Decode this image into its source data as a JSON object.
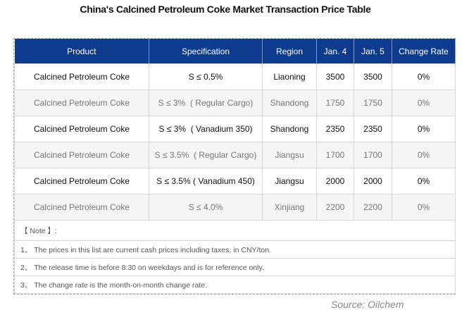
{
  "title": "China's Calcined Petroleum Coke Market Transaction Price Table",
  "table": {
    "headers": [
      "Product",
      "Specification",
      "Region",
      "Jan. 4",
      "Jan. 5",
      "Change Rate"
    ],
    "rows": [
      [
        "Calcined Petroleum Coke",
        "S ≤ 0.5%",
        "Liaoning",
        "3500",
        "3500",
        "0%"
      ],
      [
        "Calcined Petroleum Coke",
        "S ≤ 3%  ( Regular Cargo)",
        "Shandong",
        "1750",
        "1750",
        "0%"
      ],
      [
        "Calcined Petroleum Coke",
        "S ≤ 3%  ( Vanadium 350)",
        "Shandong",
        "2350",
        "2350",
        "0%"
      ],
      [
        "Calcined Petroleum Coke",
        "S ≤ 3.5%  ( Regular Cargo)",
        "Jiangsu",
        "1700",
        "1700",
        "0%"
      ],
      [
        "Calcined Petroleum Coke",
        "S ≤ 3.5% ( Vanadium 450)",
        "Jiangsu",
        "2000",
        "2000",
        "0%"
      ],
      [
        "Calcined Petroleum Coke",
        "S ≤ 4.0%",
        "Xinjiang",
        "2200",
        "2200",
        "0%"
      ]
    ]
  },
  "notes": [
    "【 Note 】:",
    "1、 The prices in this list are current cash prices including taxes, in CNY/ton.",
    "2、 The release time is before 8:30 on weekdays and is for reference only.",
    "3、 The change rate is the month-on-month change rate."
  ],
  "source": "Source: Oilchem"
}
